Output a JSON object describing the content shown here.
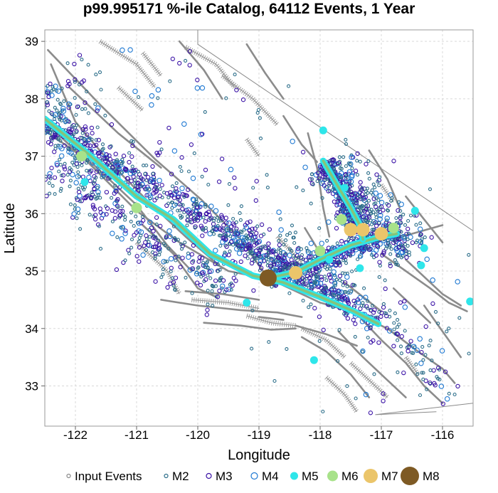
{
  "chart_data": {
    "type": "scatter",
    "title": "p99.995171 %-ile Catalog, 64112 Events, 1 Year",
    "xlabel": "Longitude",
    "ylabel": "Latitude",
    "xlim": [
      -122.5,
      -115.5
    ],
    "ylim": [
      32.3,
      39.2
    ],
    "xticks": [
      -122,
      -121,
      -120,
      -119,
      -118,
      -117,
      -116
    ],
    "yticks": [
      33,
      34,
      35,
      36,
      37,
      38,
      39
    ],
    "grid": true,
    "legend_position": "bottom",
    "colors": {
      "input_events": "#8a8a8a",
      "M2": "#2c6e8a",
      "M3": "#3a12a6",
      "M4": "#1e78d2",
      "M5": "#2ee6ea",
      "M6": "#a8e28a",
      "M7": "#ebc56a",
      "M8": "#7e5a24",
      "faults": "#8c8c8c"
    },
    "legend": [
      {
        "key": "input",
        "label": "Input Events",
        "style": "ring",
        "size": 2.5
      },
      {
        "key": "M2",
        "label": "M2",
        "style": "ring",
        "size": 2.5
      },
      {
        "key": "M3",
        "label": "M3",
        "style": "ring",
        "size": 3.5
      },
      {
        "key": "M4",
        "label": "M4",
        "style": "ring",
        "size": 4.5
      },
      {
        "key": "M5",
        "label": "M5",
        "style": "fill",
        "size": 5.5
      },
      {
        "key": "M6",
        "label": "M6",
        "style": "fill",
        "size": 7.5
      },
      {
        "key": "M7",
        "label": "M7",
        "style": "fill",
        "size": 10
      },
      {
        "key": "M8",
        "label": "M8",
        "style": "fill",
        "size": 13
      }
    ],
    "large_events": [
      {
        "mag": "M8",
        "lon": -118.85,
        "lat": 34.88
      },
      {
        "mag": "M7",
        "lon": -117.3,
        "lat": 35.72
      },
      {
        "mag": "M7",
        "lon": -117.5,
        "lat": 35.72
      },
      {
        "mag": "M7",
        "lon": -117.0,
        "lat": 35.65
      },
      {
        "mag": "M7",
        "lon": -118.4,
        "lat": 34.97
      },
      {
        "mag": "M6",
        "lon": -117.65,
        "lat": 35.9
      },
      {
        "mag": "M6",
        "lon": -118.0,
        "lat": 35.35
      },
      {
        "mag": "M6",
        "lon": -116.8,
        "lat": 35.75
      },
      {
        "mag": "M6",
        "lon": -121.9,
        "lat": 37.0
      },
      {
        "mag": "M6",
        "lon": -121.0,
        "lat": 36.1
      },
      {
        "mag": "M5",
        "lon": -117.95,
        "lat": 37.45
      },
      {
        "mag": "M5",
        "lon": -121.85,
        "lat": 36.55
      },
      {
        "mag": "M5",
        "lon": -118.1,
        "lat": 33.45
      },
      {
        "mag": "M5",
        "lon": -115.55,
        "lat": 34.47
      },
      {
        "mag": "M5",
        "lon": -116.35,
        "lat": 35.1
      },
      {
        "mag": "M5",
        "lon": -119.2,
        "lat": 34.45
      },
      {
        "mag": "M5",
        "lon": -117.85,
        "lat": 35.2
      },
      {
        "mag": "M5",
        "lon": -117.35,
        "lat": 35.05
      },
      {
        "mag": "M5",
        "lon": -116.3,
        "lat": 35.4
      },
      {
        "mag": "M5",
        "lon": -116.45,
        "lat": 36.05
      },
      {
        "mag": "M5",
        "lon": -117.6,
        "lat": 36.45
      }
    ],
    "rupture_traces": [
      [
        [
          -122.5,
          37.65
        ],
        [
          -121.8,
          37.05
        ],
        [
          -121.0,
          36.3
        ],
        [
          -120.4,
          35.9
        ],
        [
          -119.8,
          35.3
        ],
        [
          -119.1,
          34.92
        ],
        [
          -118.6,
          34.8
        ],
        [
          -118.0,
          34.55
        ],
        [
          -117.45,
          34.3
        ],
        [
          -117.05,
          34.08
        ]
      ],
      [
        [
          -118.85,
          34.88
        ],
        [
          -118.4,
          34.98
        ],
        [
          -118.0,
          35.2
        ],
        [
          -117.5,
          35.45
        ],
        [
          -117.0,
          35.6
        ],
        [
          -116.75,
          35.65
        ]
      ],
      [
        [
          -117.95,
          36.92
        ],
        [
          -117.75,
          36.55
        ],
        [
          -117.5,
          36.1
        ],
        [
          -117.35,
          35.8
        ],
        [
          -117.3,
          35.55
        ]
      ]
    ],
    "seismicity_zones": [
      {
        "from": [
          -122.5,
          37.55
        ],
        "to": [
          -117.05,
          34.1
        ],
        "width": 0.45,
        "count": 700,
        "hot": true
      },
      {
        "from": [
          -118.8,
          34.9
        ],
        "to": [
          -116.7,
          35.65
        ],
        "width": 0.35,
        "count": 350,
        "hot": true
      },
      {
        "from": [
          -117.9,
          36.9
        ],
        "to": [
          -117.3,
          35.5
        ],
        "width": 0.35,
        "count": 300,
        "hot": true
      },
      {
        "from": [
          -117.9,
          36.9
        ],
        "to": [
          -116.5,
          35.3
        ],
        "width": 0.9,
        "count": 380,
        "hot": false
      },
      {
        "from": [
          -122.4,
          36.8
        ],
        "to": [
          -119.5,
          34.6
        ],
        "width": 0.9,
        "count": 300,
        "hot": false
      },
      {
        "from": [
          -122.5,
          38.2
        ],
        "to": [
          -121.5,
          36.5
        ],
        "width": 0.9,
        "count": 150,
        "hot": false
      },
      {
        "from": [
          -119.5,
          35.8
        ],
        "to": [
          -117.5,
          34.6
        ],
        "width": 0.9,
        "count": 200,
        "hot": false
      },
      {
        "from": [
          -117.0,
          34.3
        ],
        "to": [
          -115.8,
          32.8
        ],
        "width": 0.6,
        "count": 60,
        "hot": false
      },
      {
        "from": [
          -122.0,
          38.8
        ],
        "to": [
          -116.0,
          33.0
        ],
        "width": 4.0,
        "count": 260,
        "hot": false
      }
    ],
    "faults": [
      [
        [
          -122.45,
          38.85
        ],
        [
          -121.6,
          37.9
        ],
        [
          -120.7,
          36.95
        ],
        [
          -119.95,
          36.25
        ],
        [
          -119.3,
          35.55
        ],
        [
          -118.9,
          34.95
        ]
      ],
      [
        [
          -122.4,
          38.6
        ],
        [
          -122.0,
          37.6
        ],
        [
          -121.4,
          36.85
        ],
        [
          -120.8,
          36.2
        ],
        [
          -120.2,
          35.6
        ],
        [
          -119.6,
          35.05
        ]
      ],
      [
        [
          -122.5,
          37.45
        ],
        [
          -121.7,
          36.85
        ],
        [
          -121.0,
          36.15
        ],
        [
          -120.5,
          35.45
        ],
        [
          -120.1,
          35.0
        ]
      ],
      [
        [
          -122.1,
          38.2
        ],
        [
          -121.3,
          37.4
        ],
        [
          -120.6,
          36.8
        ]
      ],
      [
        [
          -122.45,
          37.55
        ],
        [
          -121.8,
          36.9
        ],
        [
          -121.0,
          36.05
        ],
        [
          -120.3,
          35.5
        ],
        [
          -119.5,
          35.0
        ],
        [
          -118.8,
          34.85
        ],
        [
          -118.0,
          34.45
        ],
        [
          -117.5,
          34.3
        ],
        [
          -116.9,
          34.0
        ],
        [
          -116.4,
          33.6
        ],
        [
          -116.0,
          33.3
        ],
        [
          -115.8,
          33.05
        ]
      ],
      [
        [
          -122.2,
          37.3
        ],
        [
          -121.6,
          36.7
        ]
      ],
      [
        [
          -120.9,
          35.8
        ],
        [
          -120.4,
          35.3
        ],
        [
          -120.0,
          34.7
        ],
        [
          -119.7,
          34.55
        ]
      ],
      [
        [
          -120.6,
          34.5
        ],
        [
          -120.0,
          34.4
        ],
        [
          -119.3,
          34.32
        ],
        [
          -118.7,
          34.28
        ],
        [
          -118.3,
          34.2
        ]
      ],
      [
        [
          -120.2,
          34.65
        ],
        [
          -119.6,
          34.6
        ],
        [
          -119.0,
          34.5
        ]
      ],
      [
        [
          -119.9,
          34.1
        ],
        [
          -119.3,
          34.05
        ],
        [
          -118.8,
          33.98
        ],
        [
          -118.4,
          34.0
        ]
      ],
      [
        [
          -118.85,
          34.88
        ],
        [
          -118.4,
          35.0
        ],
        [
          -118.0,
          35.15
        ],
        [
          -117.5,
          35.4
        ],
        [
          -117.0,
          35.55
        ],
        [
          -116.5,
          35.65
        ],
        [
          -116.0,
          35.8
        ]
      ],
      [
        [
          -118.2,
          37.4
        ],
        [
          -118.05,
          36.8
        ],
        [
          -117.95,
          36.1
        ],
        [
          -117.85,
          35.6
        ]
      ],
      [
        [
          -117.95,
          36.9
        ],
        [
          -117.7,
          36.4
        ],
        [
          -117.45,
          35.9
        ],
        [
          -117.3,
          35.5
        ]
      ],
      [
        [
          -118.25,
          35.75
        ],
        [
          -118.05,
          35.4
        ],
        [
          -117.7,
          35.1
        ]
      ],
      [
        [
          -117.0,
          35.3
        ],
        [
          -116.6,
          35.0
        ],
        [
          -116.2,
          34.7
        ],
        [
          -115.9,
          34.45
        ],
        [
          -115.6,
          34.3
        ]
      ],
      [
        [
          -116.8,
          34.7
        ],
        [
          -116.5,
          34.4
        ],
        [
          -116.2,
          34.1
        ]
      ],
      [
        [
          -116.6,
          35.2
        ],
        [
          -116.3,
          34.9
        ],
        [
          -116.0,
          34.6
        ],
        [
          -115.7,
          34.4
        ]
      ],
      [
        [
          -117.4,
          34.25
        ],
        [
          -117.0,
          33.8
        ],
        [
          -116.6,
          33.4
        ],
        [
          -116.3,
          33.0
        ],
        [
          -116.0,
          32.7
        ]
      ],
      [
        [
          -117.7,
          33.95
        ],
        [
          -117.3,
          33.5
        ],
        [
          -116.9,
          33.1
        ],
        [
          -116.6,
          32.8
        ]
      ],
      [
        [
          -118.3,
          33.85
        ],
        [
          -117.9,
          33.6
        ],
        [
          -117.5,
          33.2
        ],
        [
          -117.2,
          32.8
        ]
      ],
      [
        [
          -118.4,
          34.05
        ],
        [
          -117.9,
          33.9
        ],
        [
          -117.4,
          33.7
        ]
      ],
      [
        [
          -119.0,
          34.2
        ],
        [
          -118.6,
          34.15
        ]
      ],
      [
        [
          -120.3,
          39.0
        ],
        [
          -119.9,
          38.5
        ],
        [
          -119.6,
          38.0
        ]
      ],
      [
        [
          -119.2,
          38.95
        ],
        [
          -118.9,
          38.45
        ],
        [
          -118.6,
          38.0
        ]
      ],
      [
        [
          -118.6,
          37.7
        ],
        [
          -118.3,
          37.2
        ],
        [
          -118.05,
          36.9
        ]
      ],
      [
        [
          -117.2,
          37.1
        ],
        [
          -116.9,
          36.6
        ],
        [
          -116.7,
          36.1
        ]
      ],
      [
        [
          -116.6,
          36.3
        ],
        [
          -116.3,
          35.9
        ],
        [
          -116.0,
          35.5
        ]
      ],
      [
        [
          -117.6,
          34.8
        ],
        [
          -117.3,
          34.55
        ],
        [
          -117.0,
          34.3
        ]
      ],
      [
        [
          -116.3,
          34.4
        ],
        [
          -116.1,
          34.1
        ],
        [
          -115.9,
          33.8
        ],
        [
          -115.7,
          33.5
        ]
      ]
    ],
    "ranges": [
      [
        [
          -121.6,
          39.0
        ],
        [
          -121.0,
          38.6
        ],
        [
          -120.7,
          38.2
        ]
      ],
      [
        [
          -120.9,
          38.8
        ],
        [
          -120.6,
          38.4
        ]
      ],
      [
        [
          -120.2,
          38.9
        ],
        [
          -119.7,
          38.6
        ],
        [
          -119.4,
          38.2
        ]
      ],
      [
        [
          -119.6,
          38.4
        ],
        [
          -119.1,
          38.0
        ],
        [
          -118.7,
          37.55
        ]
      ],
      [
        [
          -121.3,
          38.2
        ],
        [
          -120.9,
          37.8
        ]
      ],
      [
        [
          -119.2,
          37.3
        ],
        [
          -119.0,
          37.0
        ]
      ],
      [
        [
          -118.7,
          35.6
        ],
        [
          -118.3,
          35.15
        ]
      ],
      [
        [
          -121.0,
          35.5
        ],
        [
          -120.5,
          35.0
        ],
        [
          -120.3,
          34.6
        ]
      ],
      [
        [
          -120.1,
          34.5
        ],
        [
          -119.5,
          34.45
        ],
        [
          -119.0,
          34.35
        ]
      ],
      [
        [
          -119.2,
          34.22
        ],
        [
          -118.8,
          34.1
        ],
        [
          -118.4,
          34.05
        ]
      ],
      [
        [
          -118.3,
          34.0
        ],
        [
          -117.9,
          33.8
        ],
        [
          -117.6,
          33.5
        ]
      ],
      [
        [
          -117.5,
          33.4
        ],
        [
          -117.2,
          33.1
        ],
        [
          -116.9,
          32.8
        ]
      ],
      [
        [
          -117.9,
          33.15
        ],
        [
          -117.6,
          32.85
        ],
        [
          -117.4,
          32.55
        ]
      ],
      [
        [
          -116.6,
          33.5
        ],
        [
          -116.4,
          33.2
        ]
      ],
      [
        [
          -117.0,
          36.5
        ],
        [
          -116.8,
          36.2
        ]
      ]
    ],
    "outlines": [
      [
        [
          -120.0,
          39.2
        ],
        [
          -120.0,
          38.95
        ],
        [
          -115.5,
          35.7
        ]
      ],
      [
        [
          -116.1,
          32.55
        ],
        [
          -117.1,
          32.5
        ],
        [
          -115.5,
          32.7
        ]
      ]
    ]
  }
}
